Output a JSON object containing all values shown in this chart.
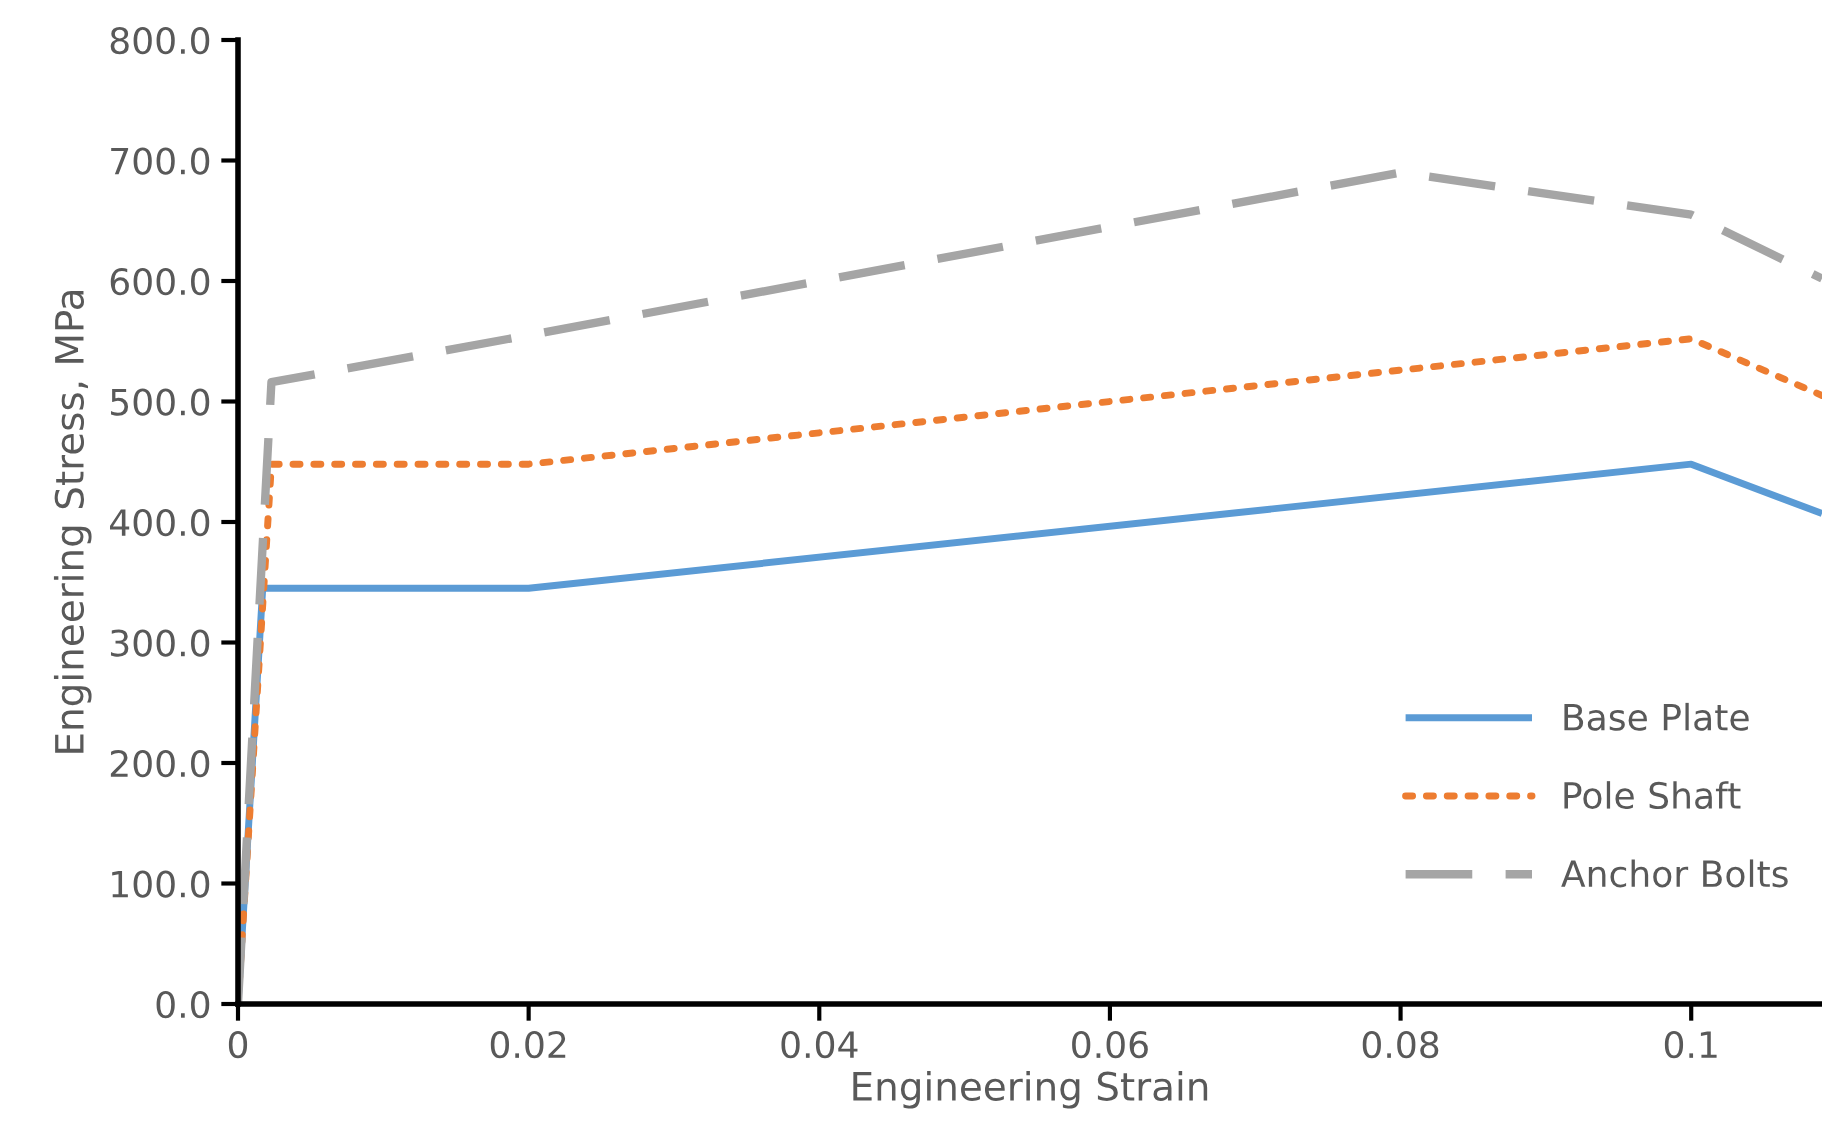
{
  "chart_data": {
    "type": "line",
    "xlabel": "Engineering Strain",
    "ylabel": "Engineering Stress, MPa",
    "xlim": [
      0,
      0.109
    ],
    "xticks": [
      0,
      0.02,
      0.04,
      0.06,
      0.08,
      0.1
    ],
    "ylim": [
      0,
      800
    ],
    "yticks": [
      {
        "value": 0,
        "label": "0.0"
      },
      {
        "value": 100,
        "label": "100.0"
      },
      {
        "value": 200,
        "label": "200.0"
      },
      {
        "value": 300,
        "label": "300.0"
      },
      {
        "value": 400,
        "label": "400.0"
      },
      {
        "value": 500,
        "label": "500.0"
      },
      {
        "value": 600,
        "label": "600.0"
      },
      {
        "value": 700,
        "label": "700.0"
      },
      {
        "value": 800,
        "label": "800.0"
      }
    ],
    "grid": false,
    "legend": "lower right",
    "series": [
      {
        "name": "Base Plate",
        "color": "#5b9bd5",
        "line_style": "solid",
        "x": [
          0,
          0.0017,
          0.02,
          0.1,
          0.109
        ],
        "values": [
          0,
          345,
          345,
          448,
          407
        ]
      },
      {
        "name": "Pole Shaft",
        "color": "#ed7d31",
        "line_style": "dotted",
        "x": [
          0,
          0.0023,
          0.02,
          0.1,
          0.109
        ],
        "values": [
          0,
          448,
          448,
          552,
          505
        ]
      },
      {
        "name": "Anchor Bolts",
        "color": "#a5a5a5",
        "line_style": "dashed",
        "x": [
          0,
          0.0023,
          0.02,
          0.08,
          0.1,
          0.109
        ],
        "values": [
          0,
          516,
          555,
          690,
          655,
          602
        ]
      }
    ]
  }
}
